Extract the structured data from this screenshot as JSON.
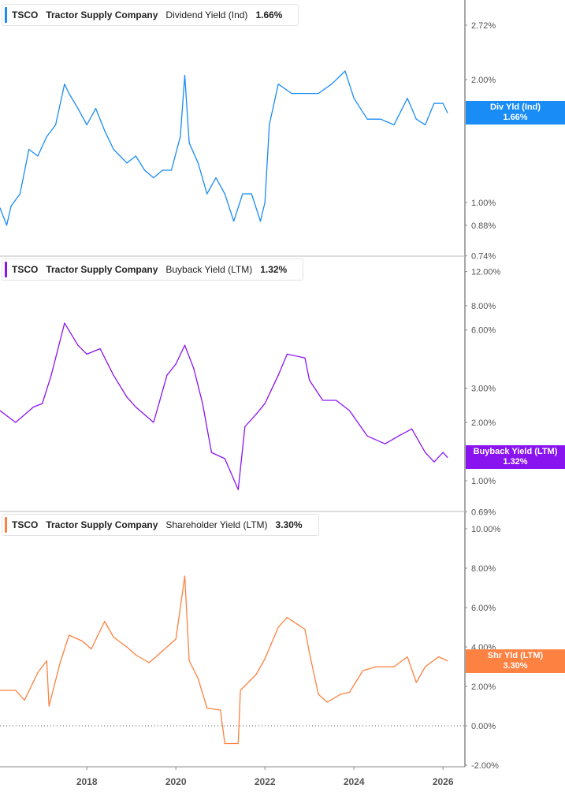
{
  "chart_data": [
    {
      "type": "line",
      "ticker": "TSCO",
      "company": "Tractor Supply Company",
      "metric": "Dividend Yield (Ind)",
      "latest": "1.66%",
      "tag_label": "Div Yld (Ind)",
      "color": "#1a8cf5",
      "yscale": "log",
      "ylim": [
        0.72,
        3.0
      ],
      "yticks": [
        2.72,
        2.0,
        1.0,
        0.88,
        0.74
      ],
      "ytick_labels": [
        "2.72%",
        "2.00%",
        "1.00%",
        "0.88%",
        "0.74%"
      ],
      "x": [
        2016.05,
        2016.2,
        2016.3,
        2016.5,
        2016.7,
        2016.9,
        2017.1,
        2017.3,
        2017.5,
        2017.6,
        2017.8,
        2018.0,
        2018.2,
        2018.4,
        2018.6,
        2018.9,
        2019.1,
        2019.3,
        2019.5,
        2019.7,
        2019.9,
        2020.1,
        2020.2,
        2020.3,
        2020.5,
        2020.7,
        2020.9,
        2021.1,
        2021.3,
        2021.5,
        2021.7,
        2021.9,
        2022.0,
        2022.1,
        2022.3,
        2022.6,
        2022.9,
        2023.2,
        2023.5,
        2023.8,
        2024.0,
        2024.3,
        2024.6,
        2024.9,
        2025.2,
        2025.4,
        2025.6,
        2025.8,
        2026.0,
        2026.1
      ],
      "values": [
        0.97,
        0.88,
        0.98,
        1.05,
        1.35,
        1.3,
        1.45,
        1.55,
        1.95,
        1.85,
        1.7,
        1.55,
        1.7,
        1.5,
        1.35,
        1.25,
        1.3,
        1.2,
        1.15,
        1.2,
        1.2,
        1.45,
        2.05,
        1.4,
        1.25,
        1.05,
        1.15,
        1.05,
        0.9,
        1.05,
        1.05,
        0.9,
        1.0,
        1.55,
        1.95,
        1.85,
        1.85,
        1.85,
        1.95,
        2.1,
        1.8,
        1.6,
        1.6,
        1.55,
        1.8,
        1.6,
        1.55,
        1.75,
        1.75,
        1.66
      ]
    },
    {
      "type": "line",
      "ticker": "TSCO",
      "company": "Tractor Supply Company",
      "metric": "Buyback Yield (LTM)",
      "latest": "1.32%",
      "tag_label": "Buyback Yield (LTM)",
      "color": "#8a14f0",
      "yscale": "log",
      "ylim": [
        0.68,
        13.5
      ],
      "yticks": [
        12,
        8,
        6,
        3,
        2,
        1,
        0.69
      ],
      "ytick_labels": [
        "12.00%",
        "8.00%",
        "6.00%",
        "3.00%",
        "2.00%",
        "1.00%",
        "0.69%"
      ],
      "x": [
        2016.05,
        2016.4,
        2016.8,
        2017.0,
        2017.2,
        2017.5,
        2017.8,
        2018.0,
        2018.3,
        2018.6,
        2018.9,
        2019.1,
        2019.5,
        2019.8,
        2020.0,
        2020.2,
        2020.4,
        2020.6,
        2020.8,
        2021.1,
        2021.4,
        2021.55,
        2021.8,
        2022.0,
        2022.3,
        2022.5,
        2022.9,
        2023.0,
        2023.3,
        2023.6,
        2023.9,
        2024.3,
        2024.7,
        2025.0,
        2025.3,
        2025.6,
        2025.8,
        2026.0,
        2026.1
      ],
      "values": [
        2.3,
        2.0,
        2.4,
        2.5,
        3.5,
        6.5,
        5.0,
        4.5,
        4.8,
        3.5,
        2.7,
        2.4,
        2.0,
        3.5,
        4.0,
        5.0,
        3.8,
        2.5,
        1.4,
        1.3,
        0.9,
        1.9,
        2.2,
        2.5,
        3.5,
        4.5,
        4.3,
        3.3,
        2.6,
        2.6,
        2.3,
        1.7,
        1.55,
        1.7,
        1.85,
        1.4,
        1.25,
        1.4,
        1.32
      ]
    },
    {
      "type": "line",
      "ticker": "TSCO",
      "company": "Tractor Supply Company",
      "metric": "Shareholder Yield (LTM)",
      "latest": "3.30%",
      "tag_label": "Shr Yld (LTM)",
      "color": "#fd8140",
      "yscale": "linear",
      "ylim": [
        -2,
        10.5
      ],
      "yticks": [
        10,
        8,
        6,
        4,
        2,
        0,
        -2
      ],
      "ytick_labels": [
        "10.00%",
        "8.00%",
        "6.00%",
        "4.00%",
        "2.00%",
        "0.00%",
        "-2.00%"
      ],
      "x": [
        2016.05,
        2016.4,
        2016.6,
        2016.9,
        2017.1,
        2017.15,
        2017.4,
        2017.6,
        2017.9,
        2018.1,
        2018.4,
        2018.6,
        2018.9,
        2019.1,
        2019.4,
        2019.7,
        2020.0,
        2020.2,
        2020.3,
        2020.5,
        2020.7,
        2021.0,
        2021.1,
        2021.4,
        2021.45,
        2021.8,
        2022.0,
        2022.3,
        2022.5,
        2022.9,
        2023.0,
        2023.2,
        2023.4,
        2023.7,
        2023.9,
        2024.2,
        2024.5,
        2024.9,
        2025.2,
        2025.4,
        2025.6,
        2025.9,
        2026.1
      ],
      "values": [
        1.8,
        1.8,
        1.3,
        2.7,
        3.3,
        1.0,
        3.2,
        4.6,
        4.3,
        3.9,
        5.3,
        4.5,
        4.0,
        3.6,
        3.2,
        3.8,
        4.4,
        7.6,
        3.3,
        2.4,
        0.9,
        0.8,
        -0.9,
        -0.9,
        1.8,
        2.6,
        3.4,
        5.0,
        5.5,
        4.9,
        3.7,
        1.6,
        1.2,
        1.6,
        1.7,
        2.8,
        3.0,
        3.0,
        3.5,
        2.2,
        3.0,
        3.5,
        3.3
      ]
    }
  ],
  "x_axis": {
    "xlim": [
      2016.05,
      2026.5
    ],
    "ticks": [
      2018,
      2020,
      2022,
      2024,
      2026
    ],
    "tick_labels": [
      "2018",
      "2020",
      "2022",
      "2024",
      "2026"
    ]
  }
}
